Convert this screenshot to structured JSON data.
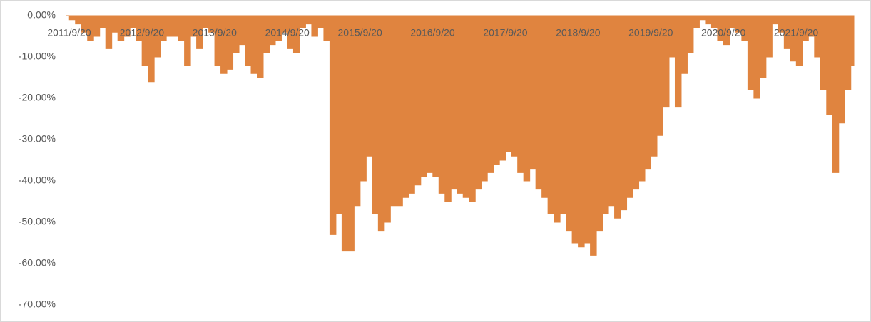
{
  "chart_data": {
    "type": "area",
    "categories": [
      "2011/9/20",
      null,
      null,
      null,
      null,
      null,
      null,
      null,
      null,
      null,
      null,
      null,
      "2012/9/20",
      null,
      null,
      null,
      null,
      null,
      null,
      null,
      null,
      null,
      null,
      null,
      "2013/9/20",
      null,
      null,
      null,
      null,
      null,
      null,
      null,
      null,
      null,
      null,
      null,
      "2014/9/20",
      null,
      null,
      null,
      null,
      null,
      null,
      null,
      null,
      null,
      null,
      null,
      "2015/9/20",
      null,
      null,
      null,
      null,
      null,
      null,
      null,
      null,
      null,
      null,
      null,
      "2016/9/20",
      null,
      null,
      null,
      null,
      null,
      null,
      null,
      null,
      null,
      null,
      null,
      "2017/9/20",
      null,
      null,
      null,
      null,
      null,
      null,
      null,
      null,
      null,
      null,
      null,
      "2018/9/20",
      null,
      null,
      null,
      null,
      null,
      null,
      null,
      null,
      null,
      null,
      null,
      "2019/9/20",
      null,
      null,
      null,
      null,
      null,
      null,
      null,
      null,
      null,
      null,
      null,
      "2020/9/20",
      null,
      null,
      null,
      null,
      null,
      null,
      null,
      null,
      null,
      null,
      null,
      "2021/9/20",
      null,
      null,
      null,
      null,
      null,
      null,
      null,
      null,
      null,
      null
    ],
    "values": [
      0,
      -1,
      -2,
      -4,
      -6,
      -5,
      -3,
      -8,
      -4,
      -6,
      -5,
      -3,
      -6,
      -12,
      -16,
      -10,
      -6,
      -5,
      -5,
      -6,
      -12,
      -5,
      -8,
      -3,
      -4,
      -12,
      -14,
      -13,
      -9,
      -7,
      -12,
      -14,
      -15,
      -9,
      -7,
      -6,
      -4,
      -8,
      -9,
      -3,
      -2,
      -5,
      -3,
      -6,
      -53,
      -48,
      -57,
      -57,
      -46,
      -40,
      -34,
      -48,
      -52,
      -50,
      -46,
      -46,
      -44,
      -43,
      -41,
      -39,
      -38,
      -39,
      -43,
      -45,
      -42,
      -43,
      -44,
      -45,
      -42,
      -40,
      -38,
      -36,
      -35,
      -33,
      -34,
      -38,
      -40,
      -37,
      -42,
      -44,
      -48,
      -50,
      -48,
      -52,
      -55,
      -56,
      -55,
      -58,
      -52,
      -48,
      -46,
      -49,
      -47,
      -44,
      -42,
      -40,
      -37,
      -34,
      -29,
      -22,
      -10,
      -22,
      -14,
      -9,
      -3,
      -1,
      -2,
      -3,
      -6,
      -7,
      -3,
      -4,
      -6,
      -18,
      -20,
      -15,
      -10,
      -2,
      -4,
      -8,
      -11,
      -12,
      -6,
      -5,
      -10,
      -18,
      -24,
      -38,
      -26,
      -18,
      -12
    ],
    "color": "#e0843f",
    "ylim": [
      -70,
      0
    ],
    "yticks": [
      {
        "value": -70,
        "label": "-70.00%"
      },
      {
        "value": -60,
        "label": "-60.00%"
      },
      {
        "value": -50,
        "label": "-50.00%"
      },
      {
        "value": -40,
        "label": "-40.00%"
      },
      {
        "value": -30,
        "label": "-30.00%"
      },
      {
        "value": -20,
        "label": "-20.00%"
      },
      {
        "value": -10,
        "label": "-10.00%"
      },
      {
        "value": 0,
        "label": "0.00%"
      }
    ]
  }
}
